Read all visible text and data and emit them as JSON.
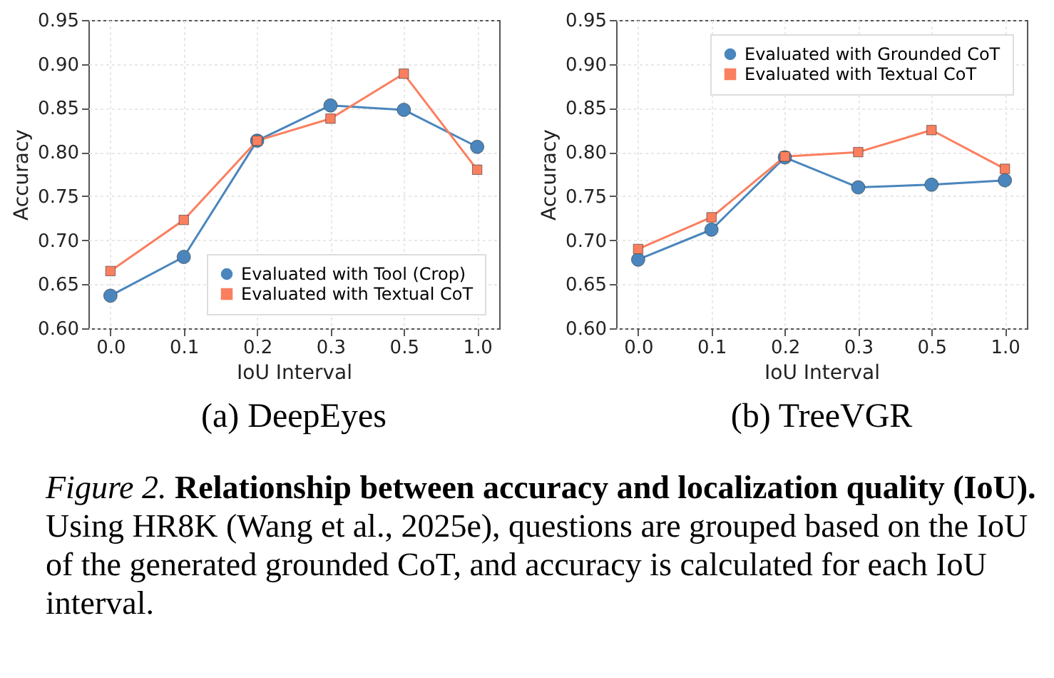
{
  "chart_data": [
    {
      "type": "line",
      "title": "(a) DeepEyes",
      "xlabel": "IoU Interval",
      "ylabel": "Accuracy",
      "categories": [
        "0.0",
        "0.1",
        "0.2",
        "0.3",
        "0.5",
        "1.0"
      ],
      "series": [
        {
          "name": "Evaluated with Tool (Crop)",
          "color": "#4a86bd",
          "marker": "circle",
          "values": [
            0.637,
            0.681,
            0.813,
            0.853,
            0.848,
            0.806
          ]
        },
        {
          "name": "Evaluated with Textual CoT",
          "color": "#fa7f5f",
          "marker": "square",
          "values": [
            0.665,
            0.723,
            0.813,
            0.838,
            0.889,
            0.78
          ]
        }
      ],
      "ylim": [
        0.6,
        0.95
      ],
      "yticks": [
        {
          "value": 0.6,
          "label": "0.60"
        },
        {
          "value": 0.65,
          "label": "0.65"
        },
        {
          "value": 0.7,
          "label": "0.70"
        },
        {
          "value": 0.75,
          "label": "0.75"
        },
        {
          "value": 0.8,
          "label": "0.80"
        },
        {
          "value": 0.85,
          "label": "0.85"
        },
        {
          "value": 0.9,
          "label": "0.90"
        },
        {
          "value": 0.95,
          "label": "0.95"
        }
      ],
      "grid": true,
      "legend": "bottom right"
    },
    {
      "type": "line",
      "title": "(b) TreeVGR",
      "xlabel": "IoU Interval",
      "ylabel": "Accuracy",
      "categories": [
        "0.0",
        "0.1",
        "0.2",
        "0.3",
        "0.5",
        "1.0"
      ],
      "series": [
        {
          "name": "Evaluated with Grounded CoT",
          "color": "#4a86bd",
          "marker": "circle",
          "values": [
            0.678,
            0.712,
            0.794,
            0.76,
            0.763,
            0.768
          ]
        },
        {
          "name": "Evaluated with Textual CoT",
          "color": "#fa7f5f",
          "marker": "square",
          "values": [
            0.69,
            0.726,
            0.795,
            0.8,
            0.825,
            0.781
          ]
        }
      ],
      "ylim": [
        0.6,
        0.95
      ],
      "yticks": [
        {
          "value": 0.6,
          "label": "0.60"
        },
        {
          "value": 0.65,
          "label": "0.65"
        },
        {
          "value": 0.7,
          "label": "0.70"
        },
        {
          "value": 0.75,
          "label": "0.75"
        },
        {
          "value": 0.8,
          "label": "0.80"
        },
        {
          "value": 0.85,
          "label": "0.85"
        },
        {
          "value": 0.9,
          "label": "0.90"
        },
        {
          "value": 0.95,
          "label": "0.95"
        }
      ],
      "grid": true,
      "legend": "top right"
    },
    {
      "type": "other",
      "annotations": [
        "Figure 2.",
        "Relationship between accuracy and localization quality (IoU).",
        "Using HR8K (Wang et al., 2025e), questions are grouped based on the IoU of the generated grounded CoT, and accuracy is calculated for each IoU interval."
      ]
    }
  ]
}
